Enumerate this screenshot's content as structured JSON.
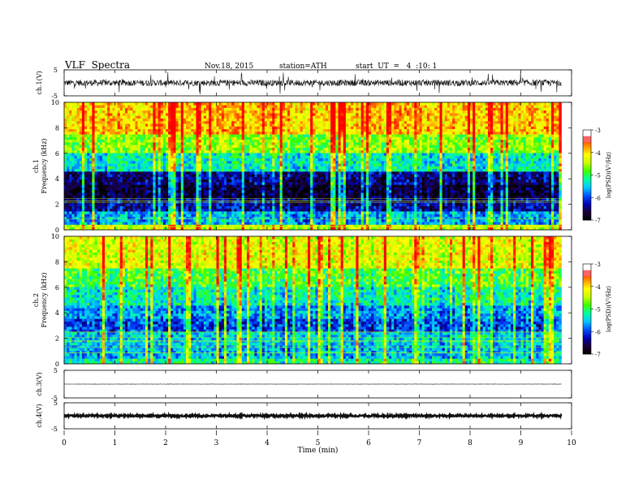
{
  "header": {
    "title": "VLF  Spectra",
    "date": "Nov.18, 2015",
    "station": "station=ATH",
    "start": "start  UT  =   4  :10: 1"
  },
  "axes": {
    "ch1_label": "ch.1(V)",
    "ch2_label": "ch.2",
    "ch3_label": "ch.3(V)",
    "ch4_label": "ch.4(V)",
    "ch1_spec_label": "ch.1",
    "freq_label": "Frequency  (kHz)",
    "time_label": "Time  (min)",
    "cbar_label": "log(PSD)(V²/Hz)"
  },
  "colors": {
    "waveform": "#111111",
    "grid": "#000000",
    "colormap": [
      "#000000",
      "#1a0033",
      "#0000b4",
      "#0050ff",
      "#00c8ff",
      "#00ffa0",
      "#3cff00",
      "#c8ff00",
      "#ffff00",
      "#ff9600",
      "#ff2800",
      "#ff0000",
      "#ffffff"
    ]
  },
  "chart_data": [
    {
      "type": "line",
      "name": "ch.1 waveform",
      "ylabel": "ch.1(V)",
      "ylim": [
        -5,
        5
      ],
      "yticks": [
        5,
        -5
      ],
      "xlim": [
        0,
        10
      ],
      "duration_min": 9.8,
      "baseline": 0,
      "amplitude_typ": 1.2,
      "amplitude_peak": 4.5
    },
    {
      "type": "heatmap",
      "name": "ch.1 spectrogram",
      "xlabel": "",
      "ylabel": "Frequency  (kHz)",
      "xlim": [
        0,
        10
      ],
      "ylim": [
        0,
        10
      ],
      "yticks": [
        0,
        2,
        4,
        6,
        8,
        10
      ],
      "zlim": [
        -7,
        -3
      ],
      "ztick_labels": [
        "-3",
        "-4",
        "-5",
        "-6",
        "-7"
      ],
      "zlabel": "log(PSD)(V²/Hz)",
      "freq_bands_khz": [
        0,
        0.5,
        1.5,
        2.5,
        3.5,
        4.5,
        6.0,
        7.5,
        10
      ],
      "band_logpsd": [
        -4.4,
        -5.6,
        -6.3,
        -6.7,
        -6.4,
        -5.3,
        -4.6,
        -3.9
      ],
      "duration_min": 9.8
    },
    {
      "type": "heatmap",
      "name": "ch.2 spectrogram",
      "xlabel": "",
      "ylabel": "Frequency  (kHz)",
      "xlim": [
        0,
        10
      ],
      "ylim": [
        0,
        10
      ],
      "yticks": [
        0,
        2,
        4,
        6,
        8,
        10
      ],
      "zlim": [
        -7,
        -3
      ],
      "ztick_labels": [
        "-3",
        "-4",
        "-5",
        "-6",
        "-7"
      ],
      "zlabel": "log(PSD)(V²/Hz)",
      "freq_bands_khz": [
        0,
        0.5,
        1.5,
        2.5,
        3.5,
        4.5,
        6.0,
        7.5,
        10
      ],
      "band_logpsd": [
        -5.2,
        -5.6,
        -5.5,
        -6.0,
        -5.7,
        -5.3,
        -4.9,
        -4.3
      ],
      "duration_min": 9.8
    },
    {
      "type": "line",
      "name": "ch.3 waveform",
      "ylabel": "ch.3(V)",
      "ylim": [
        -5,
        5
      ],
      "yticks": [
        5,
        -5
      ],
      "xlim": [
        0,
        10
      ],
      "duration_min": 9.8,
      "baseline": 0,
      "amplitude_typ": 0.05
    },
    {
      "type": "line",
      "name": "ch.4 waveform",
      "ylabel": "ch.4(V)",
      "xlabel": "Time  (min)",
      "ylim": [
        -5,
        5
      ],
      "yticks": [
        5,
        -5
      ],
      "xlim": [
        0,
        10
      ],
      "xticks": [
        0,
        1,
        2,
        3,
        4,
        5,
        6,
        7,
        8,
        9,
        10
      ],
      "duration_min": 9.8,
      "baseline": 0,
      "amplitude_typ": 0.35
    }
  ]
}
